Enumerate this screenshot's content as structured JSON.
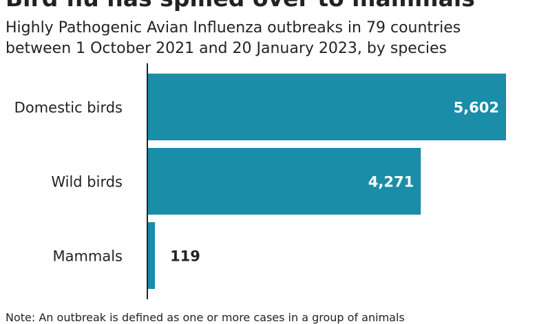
{
  "header": {
    "title": "Bird flu has spilled over to mammals",
    "subtitle_line1": "Highly Pathogenic Avian Influenza outbreaks in 79 countries",
    "subtitle_line2": "between 1 October 2021 and 20 January 2023, by species"
  },
  "footer": {
    "note": "Note: An outbreak is defined as one or more cases in a group of animals"
  },
  "colors": {
    "bar": "#1a8da8",
    "axis": "#222222",
    "text": "#222222",
    "inside_label": "#ffffff"
  },
  "chart_data": {
    "type": "bar",
    "orientation": "horizontal",
    "categories": [
      "Domestic birds",
      "Wild birds",
      "Mammals"
    ],
    "values": [
      5602,
      4271,
      119
    ],
    "data_labels": [
      "5,602",
      "4,271",
      "119"
    ],
    "xlim": [
      0,
      5602
    ],
    "grid": false,
    "legend": "none"
  }
}
